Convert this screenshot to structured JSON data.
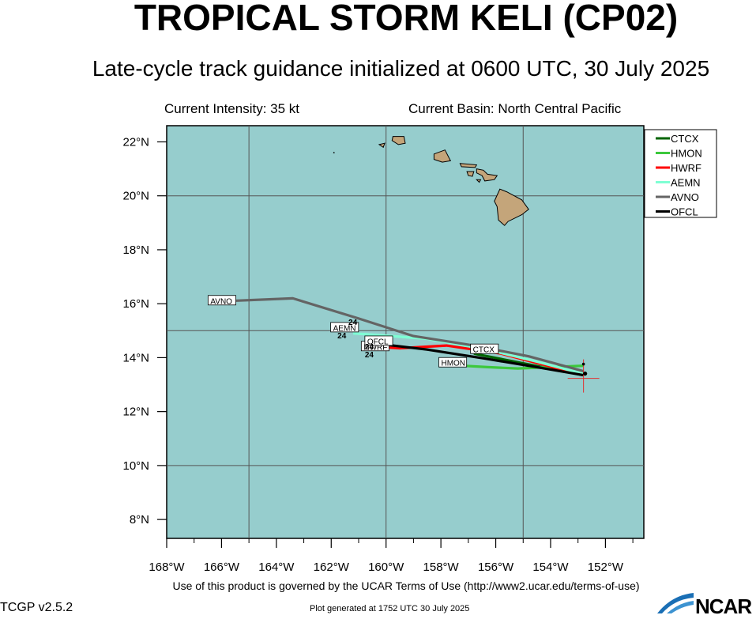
{
  "header": {
    "title": "TROPICAL STORM KELI (CP02)",
    "subtitle": "Late-cycle track guidance initialized at 0600 UTC, 30 July 2025",
    "current_intensity": "Current Intensity: 35 kt",
    "current_basin": "Current Basin: North Central Pacific"
  },
  "footer": {
    "terms": "Use of this product is governed by the UCAR Terms of Use (http://www2.ucar.edu/terms-of-use)",
    "version": "TCGP v2.5.2",
    "generated": "Plot generated at 1752 UTC   30 July 2025",
    "logo_text": "NCAR"
  },
  "map": {
    "lon_range": [
      -168,
      -150.6
    ],
    "lat_range": [
      7.3,
      22.6
    ],
    "ocean_color": "#96cdcd",
    "land_color": "#c4a57a",
    "lon_ticks": [
      {
        "value": -168,
        "label": "168°W"
      },
      {
        "value": -166,
        "label": "166°W"
      },
      {
        "value": -164,
        "label": "164°W"
      },
      {
        "value": -162,
        "label": "162°W"
      },
      {
        "value": -160,
        "label": "160°W"
      },
      {
        "value": -158,
        "label": "158°W"
      },
      {
        "value": -156,
        "label": "156°W"
      },
      {
        "value": -154,
        "label": "154°W"
      },
      {
        "value": -152,
        "label": "152°W"
      }
    ],
    "lat_ticks": [
      {
        "value": 22,
        "label": "22°N"
      },
      {
        "value": 20,
        "label": "20°N"
      },
      {
        "value": 18,
        "label": "18°N"
      },
      {
        "value": 16,
        "label": "16°N"
      },
      {
        "value": 14,
        "label": "14°N"
      },
      {
        "value": 12,
        "label": "12°N"
      },
      {
        "value": 10,
        "label": "10°N"
      },
      {
        "value": 8,
        "label": "8°N"
      }
    ],
    "grid_lons": [
      -165,
      -160,
      -155
    ],
    "grid_lats": [
      20,
      15,
      10
    ],
    "storm_position": {
      "lon": -152.8,
      "lat": 13.35
    }
  },
  "chart_data": {
    "type": "line",
    "x_label": "",
    "y_label": "",
    "legend_position": "top-right",
    "series": [
      {
        "name": "CTCX",
        "color": "#006400",
        "label_shown": "CTCX",
        "points": [
          [
            -152.8,
            13.35
          ],
          [
            -153.8,
            13.55
          ],
          [
            -154.8,
            13.75
          ],
          [
            -155.8,
            13.95
          ],
          [
            -156.8,
            14.15
          ]
        ]
      },
      {
        "name": "HMON",
        "color": "#3cc83c",
        "label_shown": "HMON",
        "points": [
          [
            -152.8,
            13.7
          ],
          [
            -154.0,
            13.65
          ],
          [
            -155.2,
            13.6
          ],
          [
            -156.3,
            13.65
          ],
          [
            -157.2,
            13.7
          ]
        ]
      },
      {
        "name": "HWRF",
        "color": "#ff0000",
        "label_shown": "HWRF",
        "points": [
          [
            -152.8,
            13.35
          ],
          [
            -154.3,
            13.75
          ],
          [
            -155.8,
            14.15
          ],
          [
            -157.8,
            14.45
          ],
          [
            -159.5,
            14.35
          ],
          [
            -160.3,
            14.4
          ]
        ]
      },
      {
        "name": "AEMN",
        "color": "#7fffd4",
        "label_shown": "AEMN",
        "points": [
          [
            -152.8,
            13.4
          ],
          [
            -154.5,
            13.85
          ],
          [
            -156.3,
            14.3
          ],
          [
            -158.5,
            14.7
          ],
          [
            -160.5,
            14.85
          ],
          [
            -161.2,
            14.9
          ]
        ]
      },
      {
        "name": "AVNO",
        "color": "#646464",
        "label_shown": "AVNO",
        "points": [
          [
            -152.8,
            13.5
          ],
          [
            -154.8,
            14.05
          ],
          [
            -156.8,
            14.45
          ],
          [
            -159.0,
            14.8
          ],
          [
            -161.0,
            15.45
          ],
          [
            -163.4,
            16.2
          ],
          [
            -165.8,
            16.1
          ]
        ]
      },
      {
        "name": "OFCL",
        "color": "#000000",
        "label_shown": "OFCL",
        "points": [
          [
            -152.8,
            13.35
          ],
          [
            -154.5,
            13.65
          ],
          [
            -156.3,
            13.95
          ],
          [
            -158.5,
            14.3
          ],
          [
            -160.6,
            14.55
          ]
        ]
      }
    ],
    "annotations": [
      {
        "text": "24",
        "lon": -161.2,
        "lat": 15.3
      },
      {
        "text": "24",
        "lon": -161.6,
        "lat": 14.8
      },
      {
        "text": "24",
        "lon": -160.6,
        "lat": 14.1
      },
      {
        "text": "24",
        "lon": -160.6,
        "lat": 14.4
      }
    ]
  },
  "islands": [
    {
      "name": "Niihau",
      "points": [
        [
          -160.25,
          21.9
        ],
        [
          -160.05,
          21.95
        ],
        [
          -160.1,
          21.8
        ]
      ]
    },
    {
      "name": "Kauai",
      "points": [
        [
          -159.75,
          22.2
        ],
        [
          -159.35,
          22.2
        ],
        [
          -159.3,
          21.95
        ],
        [
          -159.55,
          21.9
        ],
        [
          -159.78,
          22.05
        ]
      ]
    },
    {
      "name": "Oahu",
      "points": [
        [
          -158.25,
          21.55
        ],
        [
          -157.85,
          21.7
        ],
        [
          -157.65,
          21.3
        ],
        [
          -157.95,
          21.25
        ],
        [
          -158.25,
          21.35
        ]
      ]
    },
    {
      "name": "Molokai",
      "points": [
        [
          -157.3,
          21.2
        ],
        [
          -156.7,
          21.15
        ],
        [
          -156.75,
          21.05
        ],
        [
          -157.25,
          21.08
        ]
      ]
    },
    {
      "name": "Lanai",
      "points": [
        [
          -157.05,
          20.9
        ],
        [
          -156.8,
          20.9
        ],
        [
          -156.85,
          20.72
        ],
        [
          -157.0,
          20.75
        ]
      ]
    },
    {
      "name": "Maui",
      "points": [
        [
          -156.7,
          21.0
        ],
        [
          -156.45,
          20.95
        ],
        [
          -156.3,
          20.8
        ],
        [
          -155.95,
          20.75
        ],
        [
          -156.05,
          20.6
        ],
        [
          -156.4,
          20.55
        ],
        [
          -156.5,
          20.75
        ],
        [
          -156.7,
          20.85
        ]
      ]
    },
    {
      "name": "Kahoolawe",
      "points": [
        [
          -156.7,
          20.6
        ],
        [
          -156.55,
          20.6
        ],
        [
          -156.6,
          20.5
        ]
      ]
    },
    {
      "name": "Hawaii",
      "points": [
        [
          -155.85,
          20.25
        ],
        [
          -155.6,
          20.15
        ],
        [
          -155.05,
          19.85
        ],
        [
          -154.8,
          19.5
        ],
        [
          -155.05,
          19.3
        ],
        [
          -155.55,
          19.05
        ],
        [
          -155.68,
          18.9
        ],
        [
          -155.9,
          19.1
        ],
        [
          -155.95,
          19.6
        ],
        [
          -156.05,
          19.8
        ]
      ]
    }
  ]
}
